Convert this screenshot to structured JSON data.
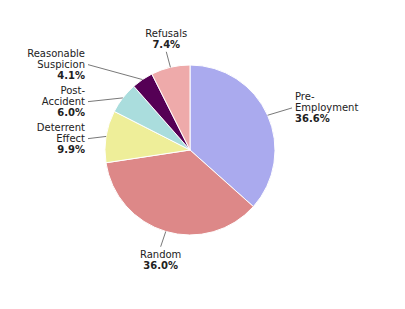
{
  "chart_data": {
    "type": "pie",
    "categories": [
      "Pre-\nEmployment",
      "Random",
      "Deterrent\nEffect",
      "Post-\nAccident",
      "Reasonable\nSuspicion",
      "Refusals"
    ],
    "values": [
      36.6,
      36.0,
      9.9,
      6.0,
      4.1,
      7.4
    ],
    "value_labels": [
      "36.6%",
      "36.0%",
      "9.9%",
      "6.0%",
      "4.1%",
      "7.4%"
    ],
    "colors": [
      "#aaaaee",
      "#dd8888",
      "#eeee99",
      "#aadddd",
      "#550055",
      "#eeaaaa"
    ],
    "data_labels": true
  }
}
